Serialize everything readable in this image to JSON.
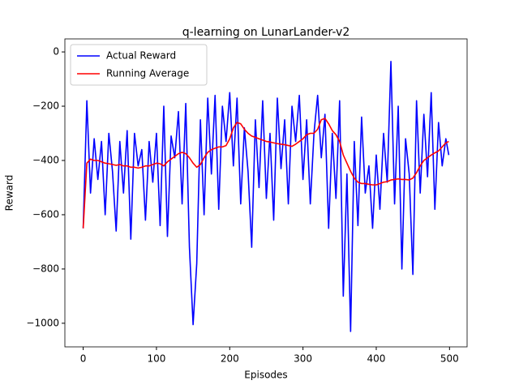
{
  "chart_data": {
    "type": "line",
    "title": "q-learning on LunarLander-v2",
    "x_label": "Episodes",
    "y_label": "Reward",
    "x": [
      0,
      5,
      10,
      15,
      20,
      25,
      30,
      35,
      40,
      45,
      50,
      55,
      60,
      65,
      70,
      75,
      80,
      85,
      90,
      95,
      100,
      105,
      110,
      115,
      120,
      125,
      130,
      135,
      140,
      145,
      150,
      155,
      160,
      165,
      170,
      175,
      180,
      185,
      190,
      195,
      200,
      205,
      210,
      215,
      220,
      225,
      230,
      235,
      240,
      245,
      250,
      255,
      260,
      265,
      270,
      275,
      280,
      285,
      290,
      295,
      300,
      305,
      310,
      315,
      320,
      325,
      330,
      335,
      340,
      345,
      350,
      355,
      360,
      365,
      370,
      375,
      380,
      385,
      390,
      395,
      400,
      405,
      410,
      415,
      420,
      425,
      430,
      435,
      440,
      445,
      450,
      455,
      460,
      465,
      470,
      475,
      480,
      485,
      490,
      495,
      499
    ],
    "series": [
      {
        "name": "Actual Reward",
        "color": "#0000ff",
        "values": [
          -650,
          -180,
          -520,
          -320,
          -470,
          -330,
          -600,
          -300,
          -440,
          -660,
          -330,
          -520,
          -290,
          -690,
          -300,
          -420,
          -360,
          -620,
          -330,
          -480,
          -300,
          -640,
          -200,
          -680,
          -310,
          -390,
          -220,
          -560,
          -190,
          -720,
          -1005,
          -780,
          -250,
          -600,
          -170,
          -450,
          -160,
          -580,
          -200,
          -330,
          -150,
          -420,
          -170,
          -560,
          -280,
          -440,
          -720,
          -250,
          -500,
          -180,
          -540,
          -300,
          -620,
          -170,
          -430,
          -250,
          -560,
          -200,
          -330,
          -160,
          -470,
          -250,
          -560,
          -300,
          -160,
          -390,
          -230,
          -650,
          -300,
          -540,
          -180,
          -900,
          -450,
          -1030,
          -330,
          -640,
          -240,
          -520,
          -420,
          -650,
          -380,
          -580,
          -300,
          -480,
          -35,
          -560,
          -200,
          -800,
          -320,
          -450,
          -820,
          -180,
          -520,
          -230,
          -460,
          -150,
          -580,
          -260,
          -420,
          -320,
          -380
        ]
      },
      {
        "name": "Running Average",
        "color": "#ff0000",
        "values": [
          -650,
          -410,
          -395,
          -400,
          -400,
          -405,
          -410,
          -412,
          -415,
          -418,
          -415,
          -420,
          -420,
          -425,
          -425,
          -428,
          -425,
          -420,
          -420,
          -415,
          -410,
          -412,
          -420,
          -405,
          -395,
          -385,
          -375,
          -370,
          -375,
          -390,
          -410,
          -425,
          -415,
          -390,
          -370,
          -360,
          -355,
          -350,
          -350,
          -345,
          -320,
          -280,
          -260,
          -265,
          -285,
          -300,
          -310,
          -315,
          -320,
          -325,
          -330,
          -332,
          -335,
          -338,
          -340,
          -342,
          -345,
          -348,
          -340,
          -330,
          -320,
          -305,
          -300,
          -300,
          -285,
          -250,
          -245,
          -265,
          -290,
          -305,
          -330,
          -380,
          -410,
          -440,
          -465,
          -480,
          -485,
          -485,
          -488,
          -490,
          -490,
          -485,
          -480,
          -478,
          -472,
          -470,
          -468,
          -470,
          -470,
          -472,
          -465,
          -445,
          -420,
          -400,
          -390,
          -380,
          -372,
          -365,
          -350,
          -335,
          -330
        ]
      }
    ],
    "xlim": [
      -25,
      524
    ],
    "ylim": [
      -1087,
      48
    ],
    "xticks": [
      0,
      100,
      200,
      300,
      400,
      500
    ],
    "yticks": [
      {
        "value": -1000,
        "label": "−1000"
      },
      {
        "value": -800,
        "label": "−800"
      },
      {
        "value": -600,
        "label": "−600"
      },
      {
        "value": -400,
        "label": "−400"
      },
      {
        "value": -200,
        "label": "−200"
      },
      0
    ],
    "legend": "upper left",
    "grid": false
  }
}
